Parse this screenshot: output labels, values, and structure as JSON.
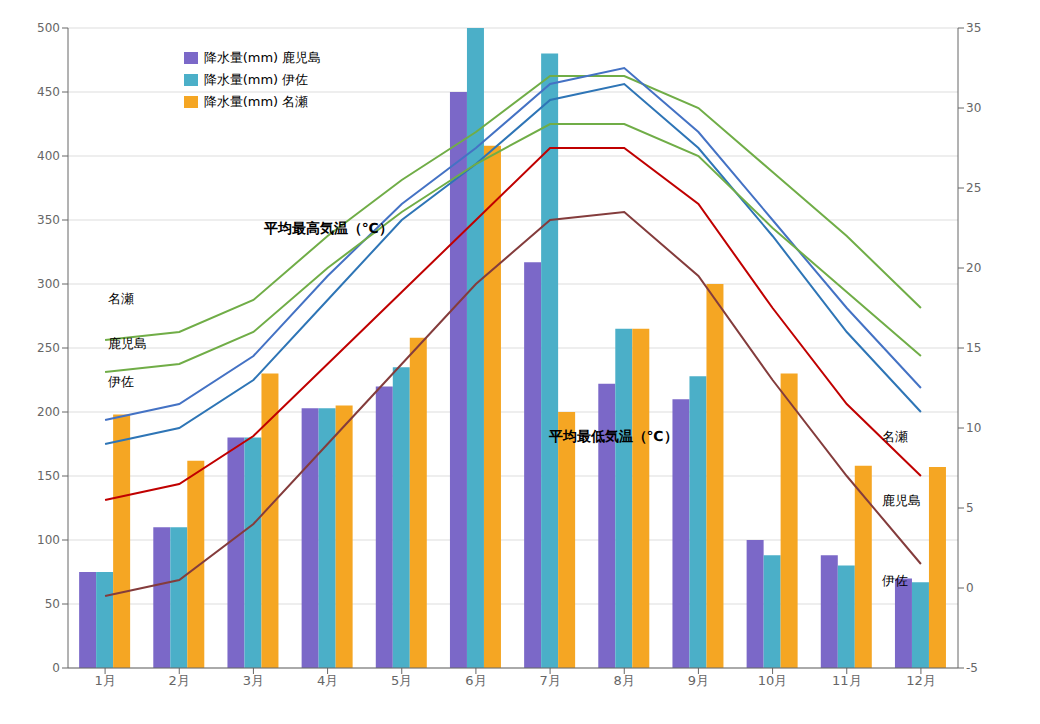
{
  "chart_data": {
    "type": "bar",
    "categories": [
      "1月",
      "2月",
      "3月",
      "4月",
      "5月",
      "6月",
      "7月",
      "8月",
      "9月",
      "10月",
      "11月",
      "12月"
    ],
    "series": [
      {
        "name": "降水量(mm) 鹿児島",
        "type": "bar",
        "color": "#7B68C8",
        "values": [
          75,
          110,
          180,
          203,
          220,
          450,
          317,
          222,
          210,
          100,
          88,
          70
        ]
      },
      {
        "name": "降水量(mm) 伊佐",
        "type": "bar",
        "color": "#4BAFC8",
        "values": [
          75,
          110,
          180,
          203,
          235,
          500,
          480,
          265,
          228,
          88,
          80,
          67
        ]
      },
      {
        "name": "降水量(mm) 名瀬",
        "type": "bar",
        "color": "#F5A623",
        "values": [
          198,
          162,
          230,
          205,
          258,
          408,
          200,
          265,
          300,
          230,
          158,
          157
        ]
      },
      {
        "type": "line",
        "axis": "y2",
        "color": "#70AD47",
        "values": [
          15.5,
          16.0,
          18.0,
          22.0,
          25.5,
          28.5,
          32.0,
          32.0,
          30.0,
          26.0,
          22.0,
          17.5
        ]
      },
      {
        "type": "line",
        "axis": "y2",
        "color": "#4472C4",
        "values": [
          10.5,
          11.5,
          14.5,
          19.5,
          24.0,
          27.5,
          31.5,
          32.5,
          28.5,
          23.0,
          17.5,
          12.5
        ]
      },
      {
        "type": "line",
        "axis": "y2",
        "color": "#2E75B6",
        "values": [
          9.0,
          10.0,
          13.0,
          18.0,
          23.0,
          26.5,
          30.5,
          31.5,
          27.5,
          22.0,
          16.0,
          11.0
        ]
      },
      {
        "type": "line",
        "axis": "y2",
        "color": "#70AD47",
        "values": [
          13.5,
          14.0,
          16.0,
          20.0,
          23.5,
          26.5,
          29.0,
          29.0,
          27.0,
          22.5,
          18.5,
          14.5
        ]
      },
      {
        "type": "line",
        "axis": "y2",
        "color": "#C00000",
        "values": [
          5.5,
          6.5,
          9.5,
          14.0,
          18.5,
          23.0,
          27.5,
          27.5,
          24.0,
          17.5,
          11.5,
          7.0
        ]
      },
      {
        "type": "line",
        "axis": "y2",
        "color": "#843C3C",
        "values": [
          -0.5,
          0.5,
          4.0,
          9.0,
          14.0,
          19.0,
          23.0,
          23.5,
          19.5,
          13.0,
          7.0,
          1.5
        ]
      }
    ],
    "ylim": [
      0,
      500
    ],
    "yticks": [
      0,
      50,
      100,
      150,
      200,
      250,
      300,
      350,
      400,
      450,
      500
    ],
    "y2lim": [
      -5,
      35
    ],
    "y2ticks": [
      -5,
      0,
      5,
      10,
      15,
      20,
      25,
      30,
      35
    ],
    "grid": true,
    "legend": "upper left",
    "annotations": [
      "平均最高気温（℃）",
      "名瀬",
      "鹿児島",
      "伊佐",
      "平均最低気温（℃）",
      "名瀬",
      "鹿児島",
      "伊佐"
    ]
  }
}
